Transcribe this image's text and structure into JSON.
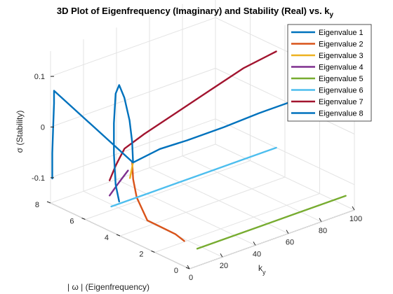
{
  "chart_data": {
    "type": "line",
    "title": "3D Plot of Eigenfrequency (Imaginary) and Stability (Real) vs. k",
    "title_subscript": "y",
    "xlabel": "k",
    "xlabel_subscript": "y",
    "ylabel": "| ω | (Eigenfrequency)",
    "zlabel": "σ (Stability)",
    "xlim": [
      0,
      100
    ],
    "ylim": [
      0,
      8
    ],
    "zlim": [
      -0.15,
      0.15
    ],
    "xticks": [
      "0",
      "20",
      "40",
      "60",
      "80",
      "100"
    ],
    "yticks": [
      "0",
      "2",
      "4",
      "6",
      "8"
    ],
    "zticks": [
      "-0.1",
      "0",
      "0.1"
    ],
    "grid": true,
    "legend_position": "top-right",
    "series": [
      {
        "name": "Eigenvalue 1",
        "color": "#0072BD",
        "points": [
          [
            10,
            4.2,
            -0.02
          ],
          [
            20,
            3.6,
            0.005
          ],
          [
            30,
            3.0,
            0.02
          ],
          [
            45,
            2.3,
            0.04
          ],
          [
            60,
            1.7,
            0.06
          ],
          [
            80,
            1.0,
            0.08
          ],
          [
            100,
            0.5,
            0.095
          ]
        ]
      },
      {
        "name": "Eigenvalue 2",
        "color": "#D95319",
        "points": [
          [
            0,
            0.3,
            -0.1
          ],
          [
            2,
            1.0,
            -0.1
          ],
          [
            4,
            2.0,
            -0.105
          ],
          [
            6,
            3.0,
            -0.11
          ],
          [
            8,
            3.8,
            -0.08
          ],
          [
            9,
            4.1,
            -0.05
          ],
          [
            10,
            4.25,
            -0.02
          ]
        ]
      },
      {
        "name": "Eigenvalue 3",
        "color": "#EDB120",
        "points": [
          [
            5,
            3.9,
            -0.04
          ],
          [
            10,
            4.2,
            -0.02
          ]
        ]
      },
      {
        "name": "Eigenvalue 4",
        "color": "#7E2F8E",
        "points": [
          [
            0,
            4.6,
            -0.08
          ],
          [
            4,
            4.5,
            -0.06
          ],
          [
            8,
            4.3,
            -0.035
          ]
        ]
      },
      {
        "name": "Eigenvalue 5",
        "color": "#77AC30",
        "points": [
          [
            10,
            0.5,
            -0.13
          ],
          [
            30,
            0.5,
            -0.13
          ],
          [
            50,
            0.5,
            -0.13
          ],
          [
            70,
            0.5,
            -0.13
          ],
          [
            100,
            0.5,
            -0.13
          ]
        ]
      },
      {
        "name": "Eigenvalue 6",
        "color": "#4DBEEE",
        "points": [
          [
            0,
            4.5,
            -0.1
          ],
          [
            20,
            4.5,
            -0.1
          ],
          [
            40,
            4.5,
            -0.1
          ],
          [
            60,
            4.5,
            -0.1
          ],
          [
            80,
            4.5,
            -0.1
          ],
          [
            100,
            4.5,
            -0.1
          ]
        ]
      },
      {
        "name": "Eigenvalue 7",
        "color": "#A2142F",
        "points": [
          [
            0,
            4.6,
            -0.05
          ],
          [
            3,
            4.55,
            -0.025
          ],
          [
            5,
            4.5,
            -0.01
          ],
          [
            8,
            4.5,
            0.005
          ],
          [
            20,
            4.5,
            0.02
          ],
          [
            40,
            4.5,
            0.04
          ],
          [
            60,
            4.5,
            0.06
          ],
          [
            80,
            4.5,
            0.08
          ],
          [
            100,
            4.5,
            0.09
          ]
        ]
      },
      {
        "name": "Eigenvalue 8",
        "color": "#0072BD",
        "points": [
          [
            0,
            7.9,
            -0.1
          ],
          [
            0,
            7.9,
            -0.05
          ],
          [
            0,
            7.85,
            0.0
          ],
          [
            0,
            7.8,
            0.05
          ],
          [
            0,
            7.8,
            0.065
          ],
          [
            0,
            7.8,
            0.075
          ],
          [
            10,
            4.2,
            -0.02
          ],
          [
            10,
            4.25,
            0.02
          ],
          [
            10,
            4.4,
            0.06
          ],
          [
            10,
            4.7,
            0.1
          ],
          [
            10,
            5.0,
            0.12
          ],
          [
            10,
            5.2,
            0.1
          ],
          [
            10,
            5.3,
            0.04
          ],
          [
            10,
            5.3,
            -0.02
          ],
          [
            10,
            5.2,
            -0.08
          ],
          [
            10,
            5.0,
            -0.11
          ]
        ]
      }
    ]
  }
}
